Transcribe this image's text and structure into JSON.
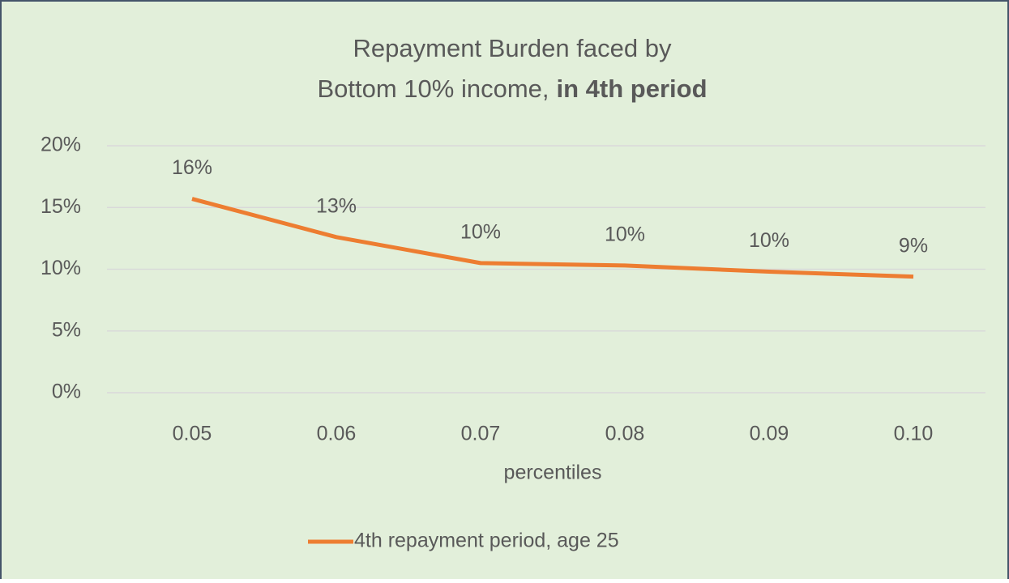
{
  "chart_data": {
    "type": "line",
    "title": [
      "Repayment Burden faced by",
      "Bottom 10% income,",
      "in 4th period"
    ],
    "x_label": "percentiles",
    "categories": [
      "0.05",
      "0.06",
      "0.07",
      "0.08",
      "0.09",
      "0.10"
    ],
    "series": [
      {
        "name": "4th repayment period, age 25",
        "color": "#ed7d31",
        "values": [
          15.7,
          12.6,
          10.5,
          10.3,
          9.8,
          9.4
        ],
        "value_labels": [
          "16%",
          "13%",
          "10%",
          "10%",
          "10%",
          "9%"
        ]
      }
    ],
    "ylim": [
      0,
      20
    ],
    "yticks": [
      {
        "value": 0,
        "label": "0%"
      },
      {
        "value": 5,
        "label": "5%"
      },
      {
        "value": 10,
        "label": "10%"
      },
      {
        "value": 15,
        "label": "15%"
      },
      {
        "value": 20,
        "label": "20%"
      }
    ],
    "grid": true,
    "legend": "bottom"
  }
}
